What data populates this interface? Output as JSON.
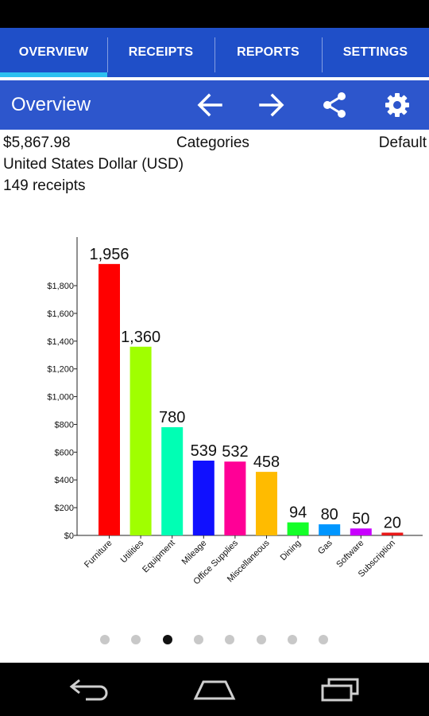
{
  "tabs": [
    {
      "label": "OVERVIEW",
      "active": true
    },
    {
      "label": "RECEIPTS",
      "active": false
    },
    {
      "label": "REPORTS",
      "active": false
    },
    {
      "label": "SETTINGS",
      "active": false
    }
  ],
  "action_bar": {
    "title": "Overview",
    "icons": [
      "arrow-left-icon",
      "arrow-right-icon",
      "share-icon",
      "gear-icon"
    ]
  },
  "summary": {
    "total": "$5,867.98",
    "grouping": "Categories",
    "profile": "Default",
    "currency": "United States Dollar (USD)",
    "receipt_count": "149 receipts"
  },
  "chart_data": {
    "type": "bar",
    "categories": [
      "Furniture",
      "Utilities",
      "Equipment",
      "Mileage",
      "Office Supplies",
      "Miscellaneous",
      "Dining",
      "Gas",
      "Software",
      "Subscription"
    ],
    "values": [
      1956,
      1360,
      780,
      539,
      532,
      458,
      94,
      80,
      50,
      20
    ],
    "value_labels": [
      "1,956",
      "1,360",
      "780",
      "539",
      "532",
      "458",
      "94",
      "80",
      "50",
      "20"
    ],
    "colors": [
      "#ff0000",
      "#a0ff00",
      "#00ffb4",
      "#1010ff",
      "#ff0096",
      "#ffbb00",
      "#14ff28",
      "#0096ff",
      "#c800ff",
      "#e81818"
    ],
    "yticks": [
      0,
      200,
      400,
      600,
      800,
      1000,
      1200,
      1400,
      1600,
      1800
    ],
    "ytick_labels": [
      "$0",
      "$200",
      "$400",
      "$600",
      "$800",
      "$1,000",
      "$1,200",
      "$1,400",
      "$1,600",
      "$1,800"
    ],
    "ylim": [
      0,
      2150
    ],
    "title": "",
    "xlabel": "",
    "ylabel": ""
  },
  "pager": {
    "count": 8,
    "active_index": 2
  },
  "nav": [
    "back-icon",
    "home-icon",
    "recent-apps-icon"
  ]
}
